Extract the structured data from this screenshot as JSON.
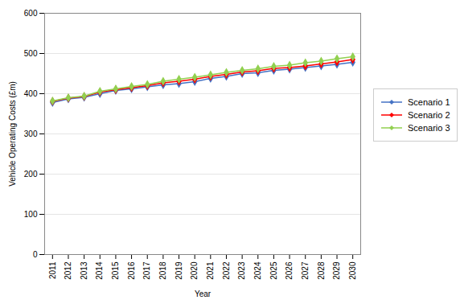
{
  "chart_data": {
    "type": "line",
    "xlabel": "Year",
    "ylabel": "Vehicle Operating Costs (£m)",
    "x": [
      2011,
      2012,
      2013,
      2014,
      2015,
      2016,
      2017,
      2018,
      2019,
      2020,
      2021,
      2022,
      2023,
      2024,
      2025,
      2026,
      2027,
      2028,
      2029,
      2030
    ],
    "series": [
      {
        "name": "Scenario 1",
        "color": "#4472C4",
        "values": [
          378,
          387,
          391,
          400,
          408,
          412,
          417,
          422,
          425,
          430,
          438,
          443,
          450,
          452,
          458,
          461,
          465,
          469,
          473,
          478
        ]
      },
      {
        "name": "Scenario 2",
        "color": "#FF0000",
        "values": [
          381,
          389,
          393,
          404,
          410,
          415,
          420,
          427,
          431,
          436,
          443,
          448,
          454,
          457,
          463,
          465,
          469,
          474,
          479,
          485
        ]
      },
      {
        "name": "Scenario 3",
        "color": "#92D050",
        "values": [
          382,
          390,
          394,
          406,
          412,
          418,
          423,
          431,
          436,
          441,
          447,
          453,
          458,
          462,
          468,
          471,
          477,
          481,
          487,
          492
        ]
      }
    ],
    "xlim": [
      2010.5,
      2030.5
    ],
    "xticks": [
      2011,
      2012,
      2013,
      2014,
      2015,
      2016,
      2017,
      2018,
      2019,
      2020,
      2021,
      2022,
      2023,
      2024,
      2025,
      2026,
      2027,
      2028,
      2029,
      2030
    ],
    "ylim": [
      0,
      600
    ],
    "yticks": [
      0,
      100,
      200,
      300,
      400,
      500,
      600
    ],
    "grid": true,
    "legend": "right",
    "marker": "diamond"
  }
}
